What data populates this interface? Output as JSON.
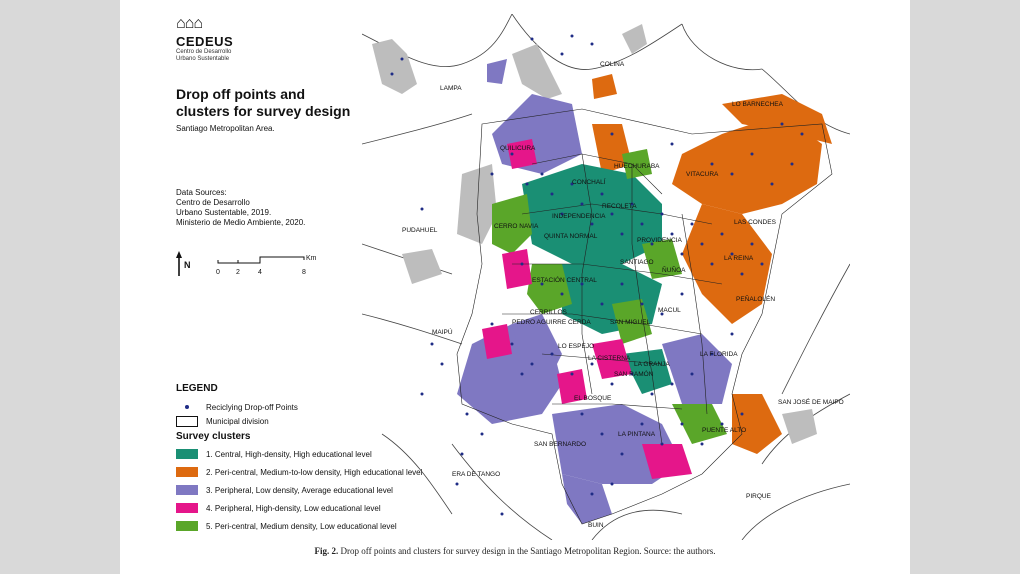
{
  "logo": {
    "brand": "CEDEUS",
    "line1": "Centro de Desarrollo",
    "line2": "Urbano Sustentable"
  },
  "title_line1": "Drop off points and",
  "title_line2": "clusters for survey design",
  "subtitle": "Santiago Metropolitan Area.",
  "sources": {
    "heading": "Data Sources:",
    "line1": "Centro de Desarrollo",
    "line2": "Urbano Sustentable, 2019.",
    "line3": "Ministerio de Medio Ambiente, 2020."
  },
  "north_label": "N",
  "scale": {
    "ticks": [
      "0",
      "2",
      "4",
      "8"
    ],
    "unit": "Km"
  },
  "legend": {
    "title": "LEGEND",
    "points_label": "Reciclying Drop-off Points",
    "division_label": "Municipal division",
    "clusters_title": "Survey clusters",
    "clusters": [
      {
        "label": "1. Central, High-density, High educational level",
        "color": "#1a8f74"
      },
      {
        "label": "2. Peri-central, Medium-to-low density, High educational level",
        "color": "#dd6a10"
      },
      {
        "label": "3. Peripheral, Low density, Average educational level",
        "color": "#7f78c2"
      },
      {
        "label": "4. Peripheral, High-density, Low educational level",
        "color": "#e5168a"
      },
      {
        "label": "5. Peri-central, Medium density, Low educational level",
        "color": "#5aa629"
      }
    ]
  },
  "map_labels": {
    "colina": "COLINA",
    "lampa": "LAMPA",
    "lo_barnechea": "LO BARNECHEA",
    "quilicura": "QUILICURA",
    "huechuraba": "HUECHURABA",
    "conchali": "CONCHALÍ",
    "vitacura": "VITACURA",
    "recoleta": "RECOLETA",
    "independencia": "INDEPENDENCIA",
    "las_condes": "LAS CONDES",
    "pudahuel": "PUDAHUEL",
    "cerro_navia": "CERRO NAVIA",
    "quinta_normal": "QUINTA NORMAL",
    "providencia": "PROVIDENCIA",
    "santiago": "SANTIAGO",
    "estacion_central": "ESTACIÓN CENTRAL",
    "la_reina": "LA REINA",
    "nunoa": "ÑUÑOA",
    "penalolen": "PEÑALOLÉN",
    "maipu": "MAIPÚ",
    "cerrillos": "CERRILLOS",
    "pac": "PEDRO AGUIRRE CERDA",
    "san_miguel": "SAN MIGUEL",
    "macul": "MACUL",
    "lo_espejo": "LO ESPEJO",
    "la_cisterna": "LA CISTERNA",
    "la_granja": "LA GRANJA",
    "san_ramon": "SAN RAMÓN",
    "la_florida": "LA FLORIDA",
    "el_bosque": "EL BOSQUE",
    "san_bernardo": "SAN BERNARDO",
    "la_pintana": "LA PINTANA",
    "puente_alto": "PUENTE ALTO",
    "san_jose": "SAN JOSÉ DE MAIPO",
    "calera": "ERA DE TANGO",
    "pirque": "PIRQUE",
    "buin": "BUIN"
  },
  "colors": {
    "central": "#1a8f74",
    "pericentral": "#dd6a10",
    "peripheral": "#7f78c2",
    "highdensity": "#e5168a",
    "medium": "#5aa629",
    "urban_gray": "#bdbdbd",
    "points": "#1f2c86"
  },
  "caption": {
    "fig": "Fig. 2.",
    "text": "Drop off points and clusters for survey design in the Santiago Metropolitan Region. Source: the authors."
  }
}
